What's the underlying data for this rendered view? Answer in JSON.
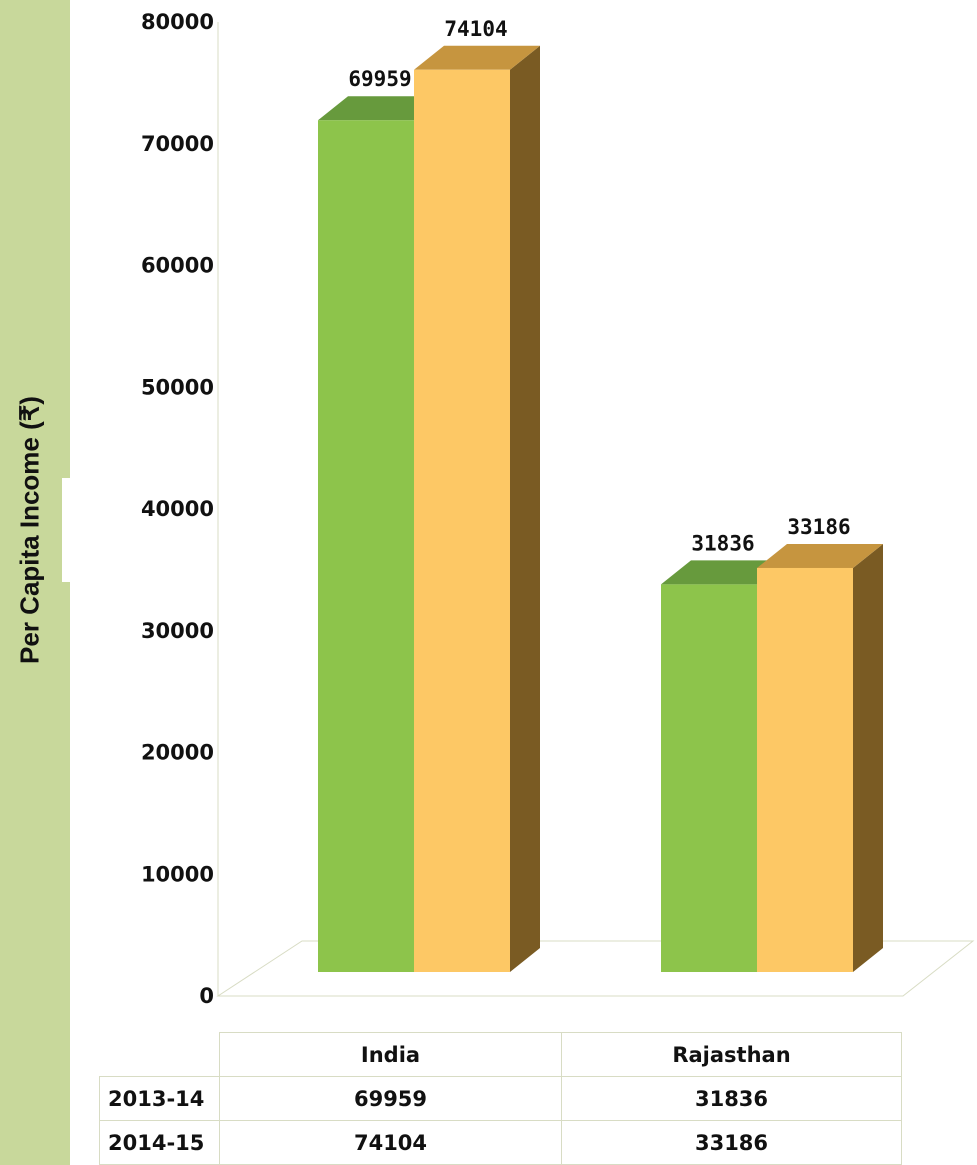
{
  "colors": {
    "side_band": "#c8d89b",
    "series_2013_14": "#8dc44b",
    "series_2013_14_top": "#679a3d",
    "series_2014_15": "#fdc865",
    "series_2014_15_top": "#c6953f",
    "series_2014_15_side": "#7a5b23"
  },
  "chart_data": {
    "type": "bar",
    "title": "",
    "xlabel": "",
    "ylabel": "Per Capita Income (₹)",
    "ylim": [
      0,
      80000
    ],
    "yticks": [
      "0",
      "10000",
      "20000",
      "30000",
      "40000",
      "50000",
      "60000",
      "70000",
      "80000"
    ],
    "categories": [
      "India",
      "Rajasthan"
    ],
    "series": [
      {
        "name": "2013-14",
        "values": [
          69959,
          31836
        ],
        "labels": [
          "69959",
          "31836"
        ]
      },
      {
        "name": "2014-15",
        "values": [
          74104,
          33186
        ],
        "labels": [
          "74104",
          "33186"
        ]
      }
    ],
    "grid": false,
    "legend": "none",
    "style": "3d-clustered"
  },
  "table": {
    "headers": [
      "",
      "India",
      "Rajasthan"
    ],
    "rows": [
      {
        "label": "2013-14",
        "values": [
          "69959",
          "31836"
        ]
      },
      {
        "label": "2014-15",
        "values": [
          "74104",
          "33186"
        ]
      }
    ]
  }
}
